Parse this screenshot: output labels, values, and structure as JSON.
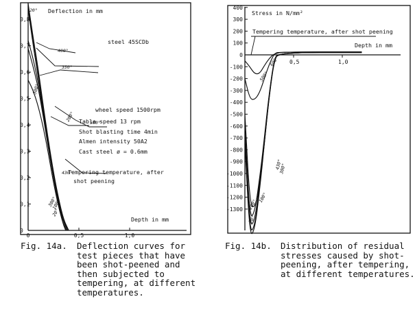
{
  "chart_data": [
    {
      "type": "line",
      "axis_title_y": "Deflection in mm",
      "axis_title_x": "Depth in mm",
      "y_ticks": [
        "0,8",
        "0,7",
        "0,6",
        "0,5",
        "0,4",
        "0,3",
        "0,2",
        "0,1",
        "0"
      ],
      "y_tick_values": [
        0.8,
        0.7,
        0.6,
        0.5,
        0.4,
        0.3,
        0.2,
        0.1,
        0
      ],
      "x_ticks": [
        "0",
        "0,5",
        "1,0"
      ],
      "x_tick_values": [
        0,
        0.5,
        1.0
      ],
      "xlim": [
        0,
        1.25
      ],
      "ylim": [
        0,
        0.85
      ],
      "annotations": {
        "material": "steel 45SCDb",
        "conditions": [
          "wheel speed 1500rpm",
          "Table speed 13 rpm",
          "Shot blasting time 4min",
          "Almen intensity 50A2",
          "Cast steel ø = 0.6mm"
        ],
        "tempering_note": [
          "Tempering temperature, after",
          "shot peening"
        ]
      },
      "series": [
        {
          "name": "400°",
          "values": [
            [
              0,
              0.72
            ],
            [
              0.05,
              0.65
            ],
            [
              0.1,
              0.56
            ],
            [
              0.15,
              0.44
            ],
            [
              0.2,
              0.32
            ],
            [
              0.25,
              0.2
            ],
            [
              0.3,
              0.1
            ],
            [
              0.35,
              0.03
            ],
            [
              0.39,
              0
            ]
          ]
        },
        {
          "name": "350°",
          "values": [
            [
              0,
              0.69
            ],
            [
              0.05,
              0.62
            ],
            [
              0.1,
              0.54
            ],
            [
              0.15,
              0.43
            ],
            [
              0.2,
              0.31
            ],
            [
              0.25,
              0.2
            ],
            [
              0.3,
              0.1
            ],
            [
              0.35,
              0.03
            ],
            [
              0.39,
              0
            ]
          ]
        },
        {
          "name": "300°",
          "values": [
            [
              0,
              0.57
            ],
            [
              0.05,
              0.53
            ],
            [
              0.1,
              0.47
            ],
            [
              0.15,
              0.39
            ],
            [
              0.2,
              0.29
            ],
            [
              0.25,
              0.18
            ],
            [
              0.3,
              0.09
            ],
            [
              0.34,
              0.03
            ],
            [
              0.38,
              0
            ]
          ]
        },
        {
          "name": "200°",
          "values": [
            [
              0,
              0.85
            ],
            [
              0.05,
              0.72
            ],
            [
              0.1,
              0.6
            ],
            [
              0.15,
              0.46
            ],
            [
              0.2,
              0.33
            ],
            [
              0.25,
              0.21
            ],
            [
              0.3,
              0.11
            ],
            [
              0.35,
              0.04
            ],
            [
              0.39,
              0
            ]
          ]
        },
        {
          "name": "100°",
          "values": [
            [
              0,
              0.84
            ],
            [
              0.05,
              0.7
            ],
            [
              0.1,
              0.58
            ],
            [
              0.15,
              0.45
            ],
            [
              0.2,
              0.32
            ],
            [
              0.25,
              0.2
            ],
            [
              0.3,
              0.1
            ],
            [
              0.34,
              0.03
            ],
            [
              0.37,
              0
            ]
          ]
        },
        {
          "name": "20°",
          "values": [
            [
              0,
              0.86
            ],
            [
              0.05,
              0.73
            ],
            [
              0.1,
              0.61
            ],
            [
              0.15,
              0.47
            ],
            [
              0.2,
              0.34
            ],
            [
              0.25,
              0.22
            ],
            [
              0.3,
              0.12
            ],
            [
              0.35,
              0.04
            ],
            [
              0.4,
              0
            ]
          ]
        }
      ],
      "curve_labels": [
        "20°",
        "400°",
        "350°",
        "300°",
        "200°",
        "500°",
        "430°",
        "300°",
        "100°",
        "20°",
        "50°"
      ],
      "caption_number": "Fig. 14a.",
      "caption": [
        "Deflection curves for",
        "test pieces that have",
        "been shot-peened and",
        "then subjected to",
        "tempering, at different",
        "temperatures."
      ]
    },
    {
      "type": "line",
      "axis_title_y": "Stress in N/mm²",
      "axis_title_x": "Depth in mm",
      "y_ticks": [
        "400",
        "300",
        "200",
        "100",
        "0",
        "-100",
        "-200",
        "-300",
        "-400",
        "-500",
        "-600",
        "-700",
        "-800",
        "-900",
        "-1000",
        "-1100",
        "-1200",
        "-1300"
      ],
      "y_tick_values": [
        400,
        300,
        200,
        100,
        0,
        -100,
        -200,
        -300,
        -400,
        -500,
        -600,
        -700,
        -800,
        -900,
        -1000,
        -1100,
        -1200,
        -1300
      ],
      "x_ticks": [
        "0,5",
        "1,0"
      ],
      "x_tick_values": [
        0.5,
        1.0
      ],
      "xlim": [
        0,
        1.25
      ],
      "ylim": [
        -1550,
        420
      ],
      "annotations": {
        "tempering_note": "Tempering temperature, after shot peening"
      },
      "series": [
        {
          "name": "600°",
          "values": [
            [
              0,
              -50
            ],
            [
              0.05,
              -100
            ],
            [
              0.1,
              -160
            ],
            [
              0.15,
              -160
            ],
            [
              0.2,
              -90
            ],
            [
              0.25,
              -30
            ],
            [
              0.3,
              10
            ],
            [
              0.4,
              25
            ],
            [
              1.2,
              25
            ]
          ]
        },
        {
          "name": "500°",
          "values": [
            [
              0,
              -200
            ],
            [
              0.05,
              -370
            ],
            [
              0.1,
              -380
            ],
            [
              0.15,
              -320
            ],
            [
              0.2,
              -200
            ],
            [
              0.25,
              -80
            ],
            [
              0.3,
              10
            ],
            [
              0.35,
              25
            ],
            [
              1.2,
              25
            ]
          ]
        },
        {
          "name": "430°",
          "values": [
            [
              0,
              -500
            ],
            [
              0.05,
              -1250
            ],
            [
              0.1,
              -1300
            ],
            [
              0.15,
              -1100
            ],
            [
              0.2,
              -750
            ],
            [
              0.25,
              -350
            ],
            [
              0.3,
              -50
            ],
            [
              0.35,
              20
            ],
            [
              1.2,
              20
            ]
          ]
        },
        {
          "name": "300°",
          "values": [
            [
              0,
              -600
            ],
            [
              0.05,
              -1380
            ],
            [
              0.1,
              -1330
            ],
            [
              0.15,
              -1050
            ],
            [
              0.2,
              -700
            ],
            [
              0.25,
              -320
            ],
            [
              0.3,
              -40
            ],
            [
              0.35,
              20
            ],
            [
              1.2,
              20
            ]
          ]
        },
        {
          "name": "200°",
          "values": [
            [
              0,
              -650
            ],
            [
              0.05,
              -1450
            ],
            [
              0.1,
              -1400
            ],
            [
              0.15,
              -1100
            ],
            [
              0.2,
              -720
            ],
            [
              0.25,
              -330
            ],
            [
              0.3,
              -40
            ],
            [
              0.35,
              20
            ],
            [
              1.2,
              20
            ]
          ]
        },
        {
          "name": "100°",
          "values": [
            [
              0,
              -700
            ],
            [
              0.05,
              -1500
            ],
            [
              0.1,
              -1450
            ],
            [
              0.15,
              -1130
            ],
            [
              0.2,
              -740
            ],
            [
              0.25,
              -340
            ],
            [
              0.3,
              -40
            ],
            [
              0.35,
              20
            ],
            [
              1.2,
              20
            ]
          ]
        },
        {
          "name": "20°",
          "values": [
            [
              0,
              -750
            ],
            [
              0.05,
              -1530
            ],
            [
              0.1,
              -1480
            ],
            [
              0.15,
              -1150
            ],
            [
              0.2,
              -750
            ],
            [
              0.25,
              -340
            ],
            [
              0.3,
              -40
            ],
            [
              0.35,
              20
            ],
            [
              1.2,
              20
            ]
          ]
        }
      ],
      "curve_labels": [
        "600°",
        "500°",
        "430°",
        "300°",
        "200°",
        "100°",
        "20°"
      ],
      "caption_number": "Fig. 14b.",
      "caption": [
        "Distribution of residual",
        "stresses caused by shot-",
        "peening, after tempering,",
        "at different temperatures."
      ]
    }
  ]
}
